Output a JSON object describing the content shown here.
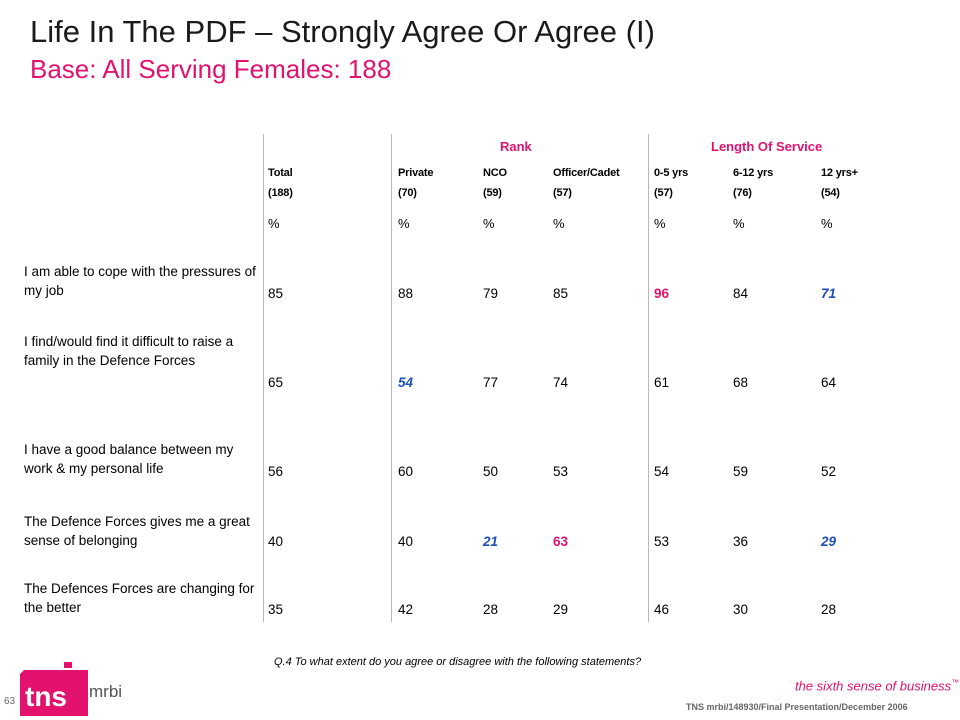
{
  "title": "Life In The PDF – Strongly Agree Or Agree (I)",
  "subtitle": "Base:  All Serving Females:  188",
  "groups": {
    "rank": "Rank",
    "service": "Length Of Service"
  },
  "columns": [
    {
      "name": "Total",
      "base": "(188)",
      "unit": "%"
    },
    {
      "name": "Private",
      "base": "(70)",
      "unit": "%"
    },
    {
      "name": "NCO",
      "base": "(59)",
      "unit": "%"
    },
    {
      "name": "Officer/Cadet",
      "base": "(57)",
      "unit": "%"
    },
    {
      "name": "0-5 yrs",
      "base": "(57)",
      "unit": "%"
    },
    {
      "name": "6-12 yrs",
      "base": "(76)",
      "unit": "%"
    },
    {
      "name": "12 yrs+",
      "base": "(54)",
      "unit": "%"
    }
  ],
  "rows": [
    {
      "label": "I am able to cope with the pressures of my job",
      "values": [
        "85",
        "88",
        "79",
        "85",
        "96",
        "84",
        "71"
      ],
      "styles": [
        "",
        "",
        "",
        "",
        "hi",
        "",
        "lo"
      ]
    },
    {
      "label": "I find/would find it difficult to raise a family in the Defence Forces",
      "values": [
        "65",
        "54",
        "77",
        "74",
        "61",
        "68",
        "64"
      ],
      "styles": [
        "",
        "lo",
        "",
        "",
        "",
        "",
        ""
      ]
    },
    {
      "label": "I have a good balance between my work & my personal life",
      "values": [
        "56",
        "60",
        "50",
        "53",
        "54",
        "59",
        "52"
      ],
      "styles": [
        "",
        "",
        "",
        "",
        "",
        "",
        ""
      ]
    },
    {
      "label": "The Defence Forces gives me a great sense of belonging",
      "values": [
        "40",
        "40",
        "21",
        "63",
        "53",
        "36",
        "29"
      ],
      "styles": [
        "",
        "",
        "lo",
        "hi",
        "",
        "",
        "lo"
      ]
    },
    {
      "label": "The Defences Forces are changing for the better",
      "values": [
        "35",
        "42",
        "28",
        "29",
        "46",
        "30",
        "28"
      ],
      "styles": [
        "",
        "",
        "",
        "",
        "",
        "",
        ""
      ]
    }
  ],
  "question": "Q.4  To what extent do you agree or disagree with the following statements?",
  "logo": {
    "brand": "tns",
    "sub": "mrbi",
    "tm": "™"
  },
  "page_number": "63",
  "tagline": "the sixth sense of business",
  "tagline_tm": "™",
  "footer": "TNS mrbi/148930/Final Presentation/December 2006",
  "colors": {
    "magenta": "#e2126e",
    "blue": "#1f4fb3",
    "divider": "#b8b8b8"
  }
}
